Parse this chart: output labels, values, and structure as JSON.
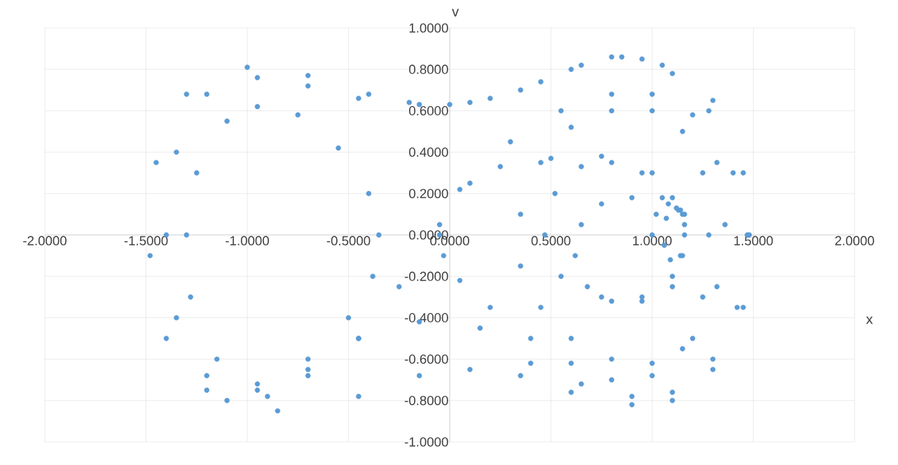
{
  "chart_data": {
    "type": "scatter",
    "xlabel": "x",
    "ylabel": "v",
    "color": "#5b9bd5",
    "marker": "circle",
    "grid": true,
    "xlim": [
      -2,
      2
    ],
    "ylim": [
      -1,
      1
    ],
    "xticks": [
      {
        "value": -2,
        "label": "-2.0000"
      },
      {
        "value": -1.5,
        "label": "-1.5000"
      },
      {
        "value": -1,
        "label": "-1.0000"
      },
      {
        "value": -0.5,
        "label": "-0.5000"
      },
      {
        "value": 0,
        "label": "0.0000"
      },
      {
        "value": 0.5,
        "label": "0.5000"
      },
      {
        "value": 1,
        "label": "1.0000"
      },
      {
        "value": 1.5,
        "label": "1.5000"
      },
      {
        "value": 2,
        "label": "2.0000"
      }
    ],
    "yticks": [
      {
        "value": -1,
        "label": "-1.0000"
      },
      {
        "value": -0.8,
        "label": "-0.8000"
      },
      {
        "value": -0.6,
        "label": "-0.6000"
      },
      {
        "value": -0.4,
        "label": "-0.4000"
      },
      {
        "value": -0.2,
        "label": "-0.2000"
      },
      {
        "value": 0,
        "label": "0.0000"
      },
      {
        "value": 0.2,
        "label": "0.2000"
      },
      {
        "value": 0.4,
        "label": "0.4000"
      },
      {
        "value": 0.6,
        "label": "0.6000"
      },
      {
        "value": 0.8,
        "label": "0.8000"
      },
      {
        "value": 1,
        "label": "1.0000"
      }
    ],
    "x": [
      1.0,
      1.02,
      1.08,
      1.14,
      1.16,
      1.14,
      1.09,
      1.06,
      1.07,
      1.12,
      1.16,
      1.15,
      1.1,
      0.95,
      0.8,
      0.68,
      0.62,
      0.65,
      0.75,
      0.9,
      1.05,
      1.13,
      1.16,
      1.1,
      0.95,
      0.75,
      0.55,
      0.47,
      0.52,
      0.65,
      0.8,
      0.95,
      1.1,
      1.15,
      1.0,
      0.75,
      0.5,
      0.25,
      0.05,
      -0.05,
      -0.03,
      0.05,
      0.2,
      0.4,
      0.6,
      0.8,
      1.0,
      1.15,
      1.25,
      1.28,
      1.25,
      1.15,
      1.0,
      0.8,
      0.6,
      0.45,
      0.35,
      0.35,
      0.45,
      0.6,
      0.8,
      1.0,
      1.2,
      1.32,
      1.36,
      1.32,
      1.2,
      1.0,
      0.8,
      0.55,
      0.3,
      0.1,
      -0.05,
      -0.25,
      -0.45,
      -0.7,
      -0.95,
      -1.15,
      -1.28,
      -1.3,
      -1.25,
      -1.1,
      -0.95,
      -0.75,
      -0.55,
      -0.4,
      -0.35,
      -0.38,
      -0.5,
      -0.7,
      -0.95,
      -1.2,
      -1.35,
      -1.4,
      -1.35,
      -1.2,
      -0.95,
      -0.7,
      -0.45,
      -0.2,
      0.0,
      0.2,
      0.45,
      0.65,
      0.8,
      0.95,
      1.1,
      1.28,
      1.4,
      1.47,
      1.42,
      1.3,
      1.1,
      0.9,
      0.65,
      0.4,
      0.15,
      -0.15,
      -0.45,
      -0.7,
      -0.9,
      -1.2,
      -1.4,
      -1.48,
      -1.45,
      -1.3,
      -1.0,
      -0.7,
      -0.4,
      -0.15,
      0.1,
      0.35,
      0.6,
      0.85,
      1.05,
      1.3,
      1.45,
      1.48,
      1.45,
      1.3,
      1.1,
      0.9,
      0.6,
      0.35,
      0.1,
      -0.15,
      -0.45,
      -0.85,
      -1.1
    ],
    "values": [
      0.0,
      0.1,
      0.15,
      0.12,
      0.0,
      -0.1,
      -0.12,
      -0.05,
      0.08,
      0.13,
      0.1,
      -0.1,
      -0.25,
      -0.32,
      -0.32,
      -0.25,
      -0.1,
      0.05,
      0.15,
      0.18,
      0.18,
      0.12,
      0.05,
      -0.2,
      -0.3,
      -0.3,
      -0.2,
      0.0,
      0.2,
      0.33,
      0.35,
      0.3,
      0.18,
      0.1,
      0.3,
      0.38,
      0.37,
      0.33,
      0.22,
      0.05,
      -0.1,
      -0.22,
      -0.35,
      -0.5,
      -0.62,
      -0.7,
      -0.68,
      -0.55,
      -0.3,
      0.0,
      0.3,
      0.5,
      0.6,
      0.6,
      0.52,
      0.35,
      0.1,
      -0.15,
      -0.35,
      -0.5,
      -0.6,
      -0.62,
      -0.5,
      -0.25,
      0.05,
      0.35,
      0.58,
      0.68,
      0.68,
      0.6,
      0.45,
      0.25,
      0.0,
      -0.25,
      -0.5,
      -0.68,
      -0.72,
      -0.6,
      -0.3,
      0.0,
      0.3,
      0.55,
      0.62,
      0.58,
      0.42,
      0.2,
      0.0,
      -0.2,
      -0.4,
      -0.6,
      -0.75,
      -0.68,
      -0.4,
      0.0,
      0.4,
      0.68,
      0.76,
      0.72,
      0.66,
      0.64,
      0.63,
      0.66,
      0.74,
      0.82,
      0.86,
      0.85,
      0.78,
      0.6,
      0.3,
      0.0,
      -0.35,
      -0.6,
      -0.76,
      -0.78,
      -0.72,
      -0.62,
      -0.45,
      -0.42,
      -0.5,
      -0.65,
      -0.78,
      -0.75,
      -0.5,
      -0.1,
      0.35,
      0.68,
      0.81,
      0.77,
      0.68,
      0.63,
      0.64,
      0.7,
      0.8,
      0.86,
      0.82,
      0.65,
      0.3,
      0.0,
      -0.35,
      -0.65,
      -0.8,
      -0.82,
      -0.76,
      -0.68,
      -0.65,
      -0.68,
      -0.78,
      -0.85,
      -0.8
    ]
  }
}
